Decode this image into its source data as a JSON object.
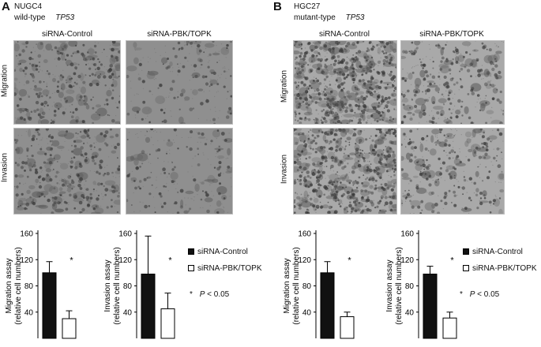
{
  "panels": [
    {
      "letter": "A",
      "cell_line": "NUGC4",
      "genotype_prefix": "wild-type",
      "gene": "TP53",
      "columns": [
        "siRNA-Control",
        "siRNA-PBK/TOPK"
      ],
      "rows": [
        "Migration",
        "Invasion"
      ],
      "density": [
        [
          0.75,
          0.3
        ],
        [
          0.8,
          0.35
        ]
      ],
      "tint": "#8f8f8f"
    },
    {
      "letter": "B",
      "cell_line": "HGC27",
      "genotype_prefix": "mutant-type",
      "gene": "TP53",
      "columns": [
        "siRNA-Control",
        "siRNA-PBK/TOPK"
      ],
      "rows": [
        "Migration",
        "Invasion"
      ],
      "density": [
        [
          1.6,
          0.65
        ],
        [
          1.5,
          0.6
        ]
      ],
      "tint": "#a9a9a9"
    }
  ],
  "legend": {
    "control": "siRNA-Control",
    "knockdown": "siRNA-PBK/TOPK",
    "sig_star": "*",
    "p_label": "P",
    "p_value": "< 0.05"
  },
  "colors": {
    "control": "#111111",
    "knockdown": "#ffffff"
  },
  "chart_data": [
    {
      "type": "bar",
      "panel": "A",
      "categories": [
        "siRNA-Control",
        "siRNA-PBK/TOPK"
      ],
      "values": [
        100,
        30
      ],
      "errors": [
        17,
        12
      ],
      "ylabel": "Migration assay",
      "ylabel2": "(relative cell numbers)",
      "ylim": [
        0,
        160
      ],
      "yticks": [
        40,
        80,
        120,
        160
      ],
      "annotation": "*"
    },
    {
      "type": "bar",
      "panel": "A",
      "categories": [
        "siRNA-Control",
        "siRNA-PBK/TOPK"
      ],
      "values": [
        98,
        45
      ],
      "errors": [
        58,
        24
      ],
      "ylabel": "Invasion assay",
      "ylabel2": "(relative cell numbers)",
      "ylim": [
        0,
        160
      ],
      "yticks": [
        40,
        80,
        120,
        160
      ],
      "annotation": "*"
    },
    {
      "type": "bar",
      "panel": "B",
      "categories": [
        "siRNA-Control",
        "siRNA-PBK/TOPK"
      ],
      "values": [
        100,
        33
      ],
      "errors": [
        17,
        7
      ],
      "ylabel": "Migration assay",
      "ylabel2": "(relative cell numbers)",
      "ylim": [
        0,
        160
      ],
      "yticks": [
        40,
        80,
        120,
        160
      ],
      "annotation": "*"
    },
    {
      "type": "bar",
      "panel": "B",
      "categories": [
        "siRNA-Control",
        "siRNA-PBK/TOPK"
      ],
      "values": [
        98,
        31
      ],
      "errors": [
        12,
        9
      ],
      "ylabel": "Invasion assay",
      "ylabel2": "(relative cell numbers)",
      "ylim": [
        0,
        160
      ],
      "yticks": [
        40,
        80,
        120,
        160
      ],
      "annotation": "*"
    }
  ]
}
